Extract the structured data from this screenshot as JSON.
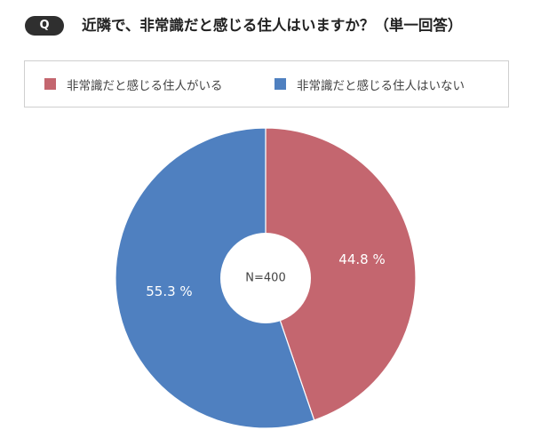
{
  "header": {
    "badge": "Q",
    "question": "近隣で、非常識だと感じる住人はいますか？（単一回答）"
  },
  "colors": {
    "series_1": "#c4666f",
    "series_2": "#4f80c0",
    "badge_bg": "#2f2f2f"
  },
  "chart_data": {
    "type": "pie",
    "style": "donut",
    "center_label": "N=400",
    "legend_position": "top",
    "start_angle": "12 o'clock, clockwise",
    "series": [
      {
        "name": "非常識だと感じる住人がいる",
        "value": 44.8,
        "label": "44.8 %"
      },
      {
        "name": "非常識だと感じる住人はいない",
        "value": 55.3,
        "label": "55.3 %"
      }
    ]
  }
}
